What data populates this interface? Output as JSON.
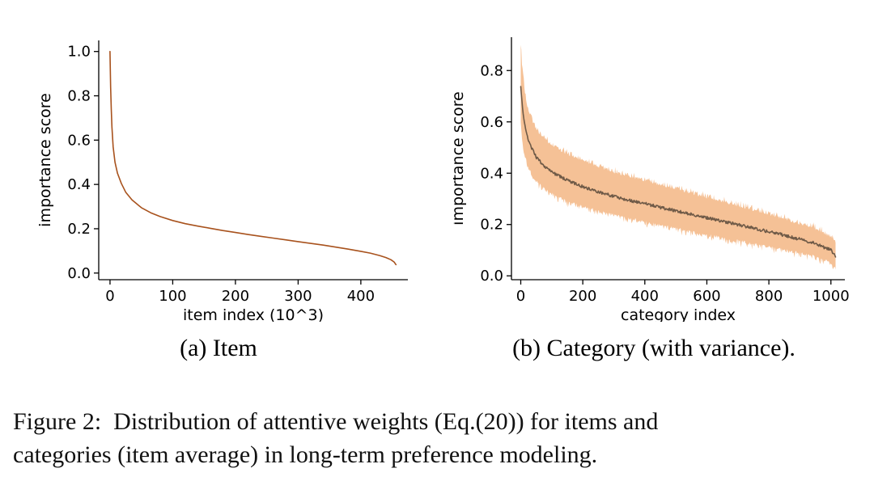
{
  "page": {
    "background": "#ffffff"
  },
  "figure": {
    "subcaptions": {
      "a": "(a) Item",
      "b": "(b) Category (with variance)."
    },
    "caption_lines": [
      "Figure 2:  Distribution of attentive weights (Eq.(20)) for items and",
      "categories (item average) in long-term preference modeling."
    ]
  },
  "chart_data": [
    {
      "id": "item-importance",
      "type": "line",
      "title": "",
      "xlabel": "item index (10^3)",
      "ylabel": "importance score",
      "xlim": [
        -18,
        475
      ],
      "ylim": [
        -0.03,
        1.05
      ],
      "xticks": [
        0,
        100,
        200,
        300,
        400
      ],
      "xticklabels": [
        "0",
        "100",
        "200",
        "300",
        "400"
      ],
      "yticks": [
        0.0,
        0.2,
        0.4,
        0.6,
        0.8,
        1.0
      ],
      "yticklabels": [
        "0.0",
        "0.2",
        "0.4",
        "0.6",
        "0.8",
        "1.0"
      ],
      "grid": false,
      "legend": null,
      "line_color": "#a8521d",
      "margins": {
        "l": 102,
        "r": 16,
        "t": 42,
        "b": 52
      },
      "series": [
        {
          "name": "importance score",
          "x": [
            0,
            1,
            2,
            3,
            5,
            8,
            12,
            18,
            25,
            35,
            50,
            65,
            80,
            100,
            120,
            140,
            160,
            180,
            200,
            220,
            240,
            260,
            280,
            300,
            320,
            340,
            360,
            380,
            400,
            415,
            430,
            440,
            448,
            453,
            456
          ],
          "y": [
            1.0,
            0.84,
            0.74,
            0.66,
            0.57,
            0.5,
            0.45,
            0.405,
            0.365,
            0.33,
            0.295,
            0.272,
            0.255,
            0.237,
            0.223,
            0.212,
            0.202,
            0.192,
            0.183,
            0.174,
            0.166,
            0.158,
            0.15,
            0.142,
            0.134,
            0.126,
            0.117,
            0.108,
            0.098,
            0.09,
            0.079,
            0.07,
            0.06,
            0.05,
            0.038
          ]
        }
      ]
    },
    {
      "id": "category-importance",
      "type": "line",
      "title": "",
      "xlabel": "category index",
      "ylabel": "importance score",
      "xlim": [
        -30,
        1045
      ],
      "ylim": [
        -0.015,
        0.93
      ],
      "xticks": [
        0,
        200,
        400,
        600,
        800,
        1000
      ],
      "xticklabels": [
        "0",
        "200",
        "400",
        "600",
        "800",
        "1000"
      ],
      "yticks": [
        0.0,
        0.2,
        0.4,
        0.6,
        0.8
      ],
      "yticklabels": [
        "0.0",
        "0.2",
        "0.4",
        "0.6",
        "0.8"
      ],
      "grid": false,
      "legend": null,
      "line_color": "#6f5a47",
      "line_noise": 0.012,
      "margins": {
        "l": 72,
        "r": 16,
        "t": 38,
        "b": 52
      },
      "band": {
        "color": "#f2b27c",
        "opacity": 0.8,
        "upper": [
          0.9,
          0.8,
          0.74,
          0.66,
          0.62,
          0.565,
          0.53,
          0.505,
          0.468,
          0.443,
          0.42,
          0.4,
          0.383,
          0.367,
          0.35,
          0.333,
          0.317,
          0.3,
          0.284,
          0.267,
          0.251,
          0.234,
          0.216,
          0.198,
          0.178,
          0.148,
          0.118
        ],
        "lower": [
          0.6,
          0.53,
          0.49,
          0.445,
          0.415,
          0.375,
          0.345,
          0.325,
          0.296,
          0.275,
          0.258,
          0.243,
          0.229,
          0.216,
          0.203,
          0.19,
          0.178,
          0.166,
          0.154,
          0.142,
          0.13,
          0.118,
          0.106,
          0.094,
          0.08,
          0.058,
          0.04
        ]
      },
      "series": [
        {
          "name": "mean importance score",
          "x": [
            0,
            5,
            10,
            20,
            30,
            50,
            75,
            100,
            150,
            200,
            250,
            300,
            350,
            400,
            450,
            500,
            550,
            600,
            650,
            700,
            750,
            800,
            850,
            900,
            950,
            1000,
            1015
          ],
          "y": [
            0.74,
            0.66,
            0.61,
            0.55,
            0.51,
            0.462,
            0.428,
            0.405,
            0.372,
            0.348,
            0.328,
            0.31,
            0.295,
            0.281,
            0.267,
            0.253,
            0.24,
            0.226,
            0.213,
            0.199,
            0.186,
            0.172,
            0.158,
            0.143,
            0.126,
            0.1,
            0.075
          ]
        }
      ]
    }
  ]
}
